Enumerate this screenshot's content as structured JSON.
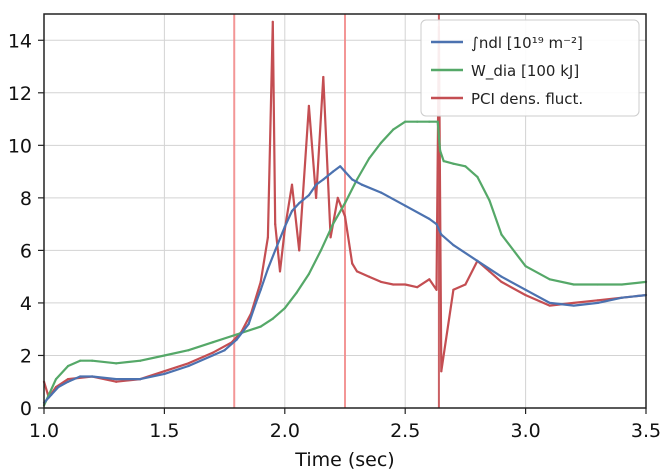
{
  "chart_data": {
    "type": "line",
    "xlabel": "Time (sec)",
    "ylabel": "",
    "title": "",
    "xlim": [
      1.0,
      3.5
    ],
    "ylim": [
      0,
      15
    ],
    "xticks": [
      "1.0",
      "1.5",
      "2.0",
      "2.5",
      "3.0",
      "3.5"
    ],
    "yticks": [
      "0",
      "2",
      "4",
      "6",
      "8",
      "10",
      "12",
      "14"
    ],
    "grid": true,
    "legend_position": "top-right",
    "vlines": [
      {
        "x": 1.79,
        "color": "#f28b8b"
      },
      {
        "x": 2.25,
        "color": "#f28b8b"
      },
      {
        "x": 2.64,
        "color": "#c44e52"
      }
    ],
    "series": [
      {
        "name": "∫ndl [10¹⁹ m⁻²]",
        "color": "#4c72b0",
        "x": [
          1.0,
          1.03,
          1.06,
          1.1,
          1.15,
          1.2,
          1.3,
          1.4,
          1.5,
          1.6,
          1.7,
          1.75,
          1.8,
          1.85,
          1.88,
          1.9,
          1.93,
          1.96,
          2.0,
          2.03,
          2.06,
          2.1,
          2.13,
          2.16,
          2.2,
          2.23,
          2.25,
          2.28,
          2.32,
          2.4,
          2.5,
          2.6,
          2.63,
          2.65,
          2.7,
          2.8,
          2.9,
          3.0,
          3.1,
          3.2,
          3.3,
          3.4,
          3.5
        ],
        "y": [
          0.2,
          0.5,
          0.8,
          1.0,
          1.2,
          1.2,
          1.1,
          1.1,
          1.3,
          1.6,
          2.0,
          2.2,
          2.6,
          3.2,
          4.0,
          4.5,
          5.3,
          6.0,
          6.9,
          7.5,
          7.8,
          8.1,
          8.5,
          8.7,
          9.0,
          9.2,
          9.0,
          8.7,
          8.5,
          8.2,
          7.7,
          7.2,
          7.0,
          6.6,
          6.2,
          5.6,
          5.0,
          4.5,
          4.0,
          3.9,
          4.0,
          4.2,
          4.3
        ]
      },
      {
        "name": "W_dia [100 kJ]",
        "color": "#55a868",
        "x": [
          1.0,
          1.05,
          1.1,
          1.15,
          1.2,
          1.3,
          1.4,
          1.5,
          1.6,
          1.7,
          1.8,
          1.9,
          1.95,
          2.0,
          2.05,
          2.1,
          2.15,
          2.2,
          2.25,
          2.3,
          2.35,
          2.4,
          2.45,
          2.5,
          2.55,
          2.6,
          2.635,
          2.645,
          2.66,
          2.7,
          2.75,
          2.8,
          2.85,
          2.9,
          3.0,
          3.1,
          3.2,
          3.3,
          3.4,
          3.5
        ],
        "y": [
          0.1,
          1.1,
          1.6,
          1.8,
          1.8,
          1.7,
          1.8,
          2.0,
          2.2,
          2.5,
          2.8,
          3.1,
          3.4,
          3.8,
          4.4,
          5.1,
          6.0,
          7.0,
          7.8,
          8.7,
          9.5,
          10.1,
          10.6,
          10.9,
          10.9,
          10.9,
          10.9,
          9.8,
          9.4,
          9.3,
          9.2,
          8.8,
          7.9,
          6.6,
          5.4,
          4.9,
          4.7,
          4.7,
          4.7,
          4.8
        ]
      },
      {
        "name": "PCI dens. fluct.",
        "color": "#c44e52",
        "x": [
          1.0,
          1.02,
          1.05,
          1.1,
          1.2,
          1.3,
          1.4,
          1.5,
          1.6,
          1.7,
          1.78,
          1.8,
          1.82,
          1.86,
          1.9,
          1.93,
          1.95,
          1.96,
          1.98,
          2.0,
          2.03,
          2.06,
          2.1,
          2.13,
          2.16,
          2.19,
          2.22,
          2.25,
          2.28,
          2.3,
          2.35,
          2.4,
          2.45,
          2.5,
          2.55,
          2.6,
          2.63,
          2.64,
          2.65,
          2.7,
          2.75,
          2.8,
          2.85,
          2.9,
          3.0,
          3.1,
          3.2,
          3.3,
          3.4,
          3.5
        ],
        "y": [
          1.0,
          0.4,
          0.8,
          1.1,
          1.2,
          1.0,
          1.1,
          1.4,
          1.7,
          2.1,
          2.5,
          2.7,
          2.9,
          3.6,
          4.8,
          6.5,
          14.7,
          7.0,
          5.2,
          6.8,
          8.5,
          6.0,
          11.5,
          8.0,
          12.6,
          6.5,
          8.0,
          7.3,
          5.5,
          5.2,
          5.0,
          4.8,
          4.7,
          4.7,
          4.6,
          4.9,
          4.5,
          14.5,
          1.4,
          4.5,
          4.7,
          5.6,
          5.2,
          4.8,
          4.3,
          3.9,
          4.0,
          4.1,
          4.2,
          4.3
        ]
      }
    ]
  }
}
